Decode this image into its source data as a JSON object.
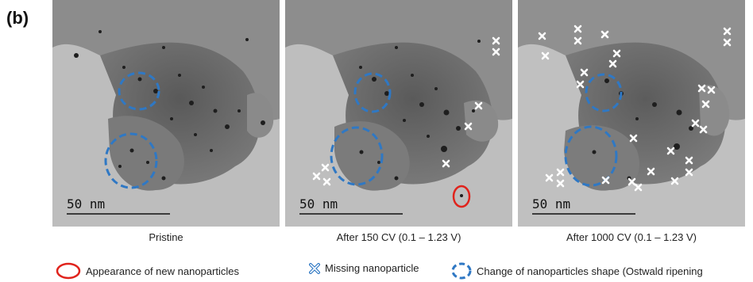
{
  "figure": {
    "panel_label": "(b)",
    "scale_bar": "50  nm",
    "panels": [
      {
        "caption": "Pristine"
      },
      {
        "caption": "After 150 CV (0.1 – 1.23 V)"
      },
      {
        "caption": "After 1000 CV (0.1 – 1.23 V)"
      }
    ],
    "legend": {
      "new_particles": "Appearance of new nanoparticles",
      "missing": "Missing nanoparticle",
      "shape_change": "Change of nanoparticles shape (Ostwald ripening"
    },
    "colors": {
      "red_marker": "#e0231c",
      "blue_marker": "#2f78c4",
      "cross_marker": "#ffffff"
    }
  }
}
